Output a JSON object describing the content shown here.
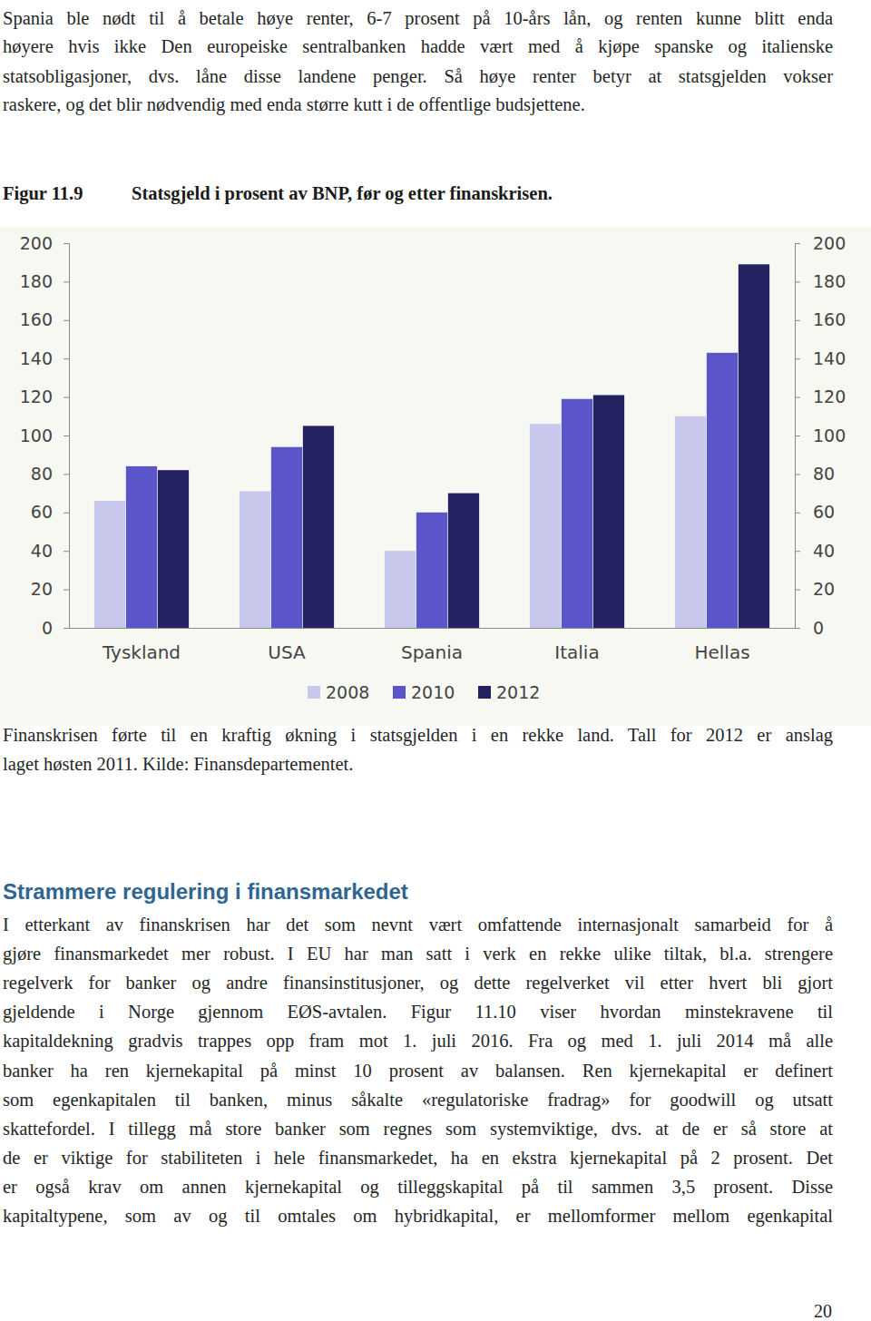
{
  "document": {
    "intro_lines": [
      "Spania ble nødt til å betale høye renter, 6-7 prosent på 10-års lån, og renten kunne blitt enda",
      "høyere hvis ikke Den europeiske sentralbanken hadde vært med å kjøpe spanske og italienske",
      "statsobligasjoner, dvs. låne disse landene penger. Så høye renter betyr at statsgjelden vokser",
      "raskere, og det blir nødvendig med enda større kutt i de offentlige budsjettene."
    ],
    "figure": {
      "label": "Figur 11.9",
      "title": "Statsgjeld i prosent av BNP, før og etter finanskrisen.",
      "caption_lines": [
        "Finanskrisen førte til en kraftig økning i statsgjelden i en rekke land. Tall for 2012 er anslag",
        "laget høsten 2011. Kilde: Finansdepartementet."
      ]
    },
    "heading": "Strammere regulering i finansmarkedet",
    "body_lines": [
      "I etterkant av finanskrisen har det som nevnt vært omfattende internasjonalt samarbeid for å",
      "gjøre finansmarkedet mer robust. I EU har man satt i verk en rekke ulike tiltak, bl.a. strengere",
      "regelverk for banker og andre finansinstitusjoner, og dette regelverket vil etter hvert bli gjort",
      "gjeldende i Norge gjennom EØS-avtalen. Figur 11.10 viser hvordan minstekravene til",
      "kapitaldekning gradvis trappes opp fram mot 1. juli 2016. Fra og med 1. juli 2014 må alle",
      "banker ha ren kjernekapital på minst 10 prosent av balansen. Ren kjernekapital er definert",
      "som egenkapitalen til banken, minus såkalte «regulatoriske fradrag» for goodwill og utsatt",
      "skattefordel. I tillegg må store banker som regnes som systemviktige, dvs. at de er så store at",
      "de er viktige for stabiliteten i hele finansmarkedet, ha en ekstra kjernekapital på 2 prosent. Det",
      "er også krav om annen kjernekapital og tilleggskapital på til sammen 3,5 prosent. Disse",
      "kapitaltypene, som av og til omtales om hybridkapital, er mellomformer mellom egenkapital"
    ],
    "page_number": 20
  },
  "chart_data": {
    "type": "bar",
    "categories": [
      "Tyskland",
      "USA",
      "Spania",
      "Italia",
      "Hellas"
    ],
    "series": [
      {
        "name": "2008",
        "color": "#c8c8ec",
        "values": [
          66,
          71,
          40,
          106,
          110
        ]
      },
      {
        "name": "2010",
        "color": "#5a55c8",
        "values": [
          84,
          94,
          60,
          119,
          143
        ]
      },
      {
        "name": "2012",
        "color": "#252262",
        "values": [
          82,
          105,
          70,
          121,
          189
        ]
      }
    ],
    "ylim": [
      0,
      200
    ],
    "yticks": [
      0,
      20,
      40,
      60,
      80,
      100,
      120,
      140,
      160,
      180,
      200
    ],
    "grid": false,
    "legend": "bottom"
  }
}
